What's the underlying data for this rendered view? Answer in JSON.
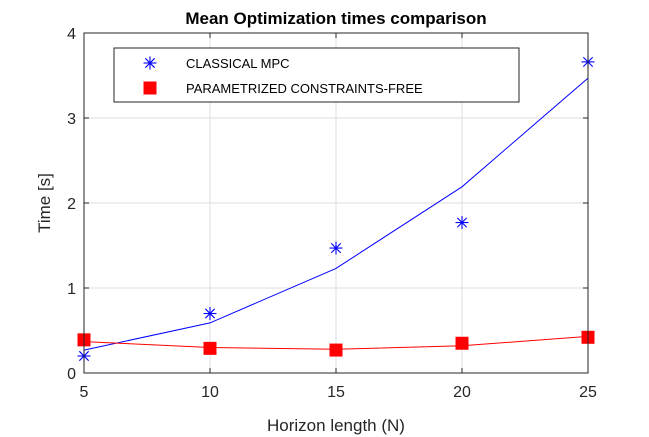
{
  "chart_data": {
    "type": "line",
    "title": "Mean Optimization times comparison",
    "xlabel": "Horizon length (N)",
    "ylabel": "Time [s]",
    "xlim": [
      5,
      25
    ],
    "ylim": [
      0,
      4
    ],
    "xticks": [
      5,
      10,
      15,
      20,
      25
    ],
    "yticks": [
      0,
      1,
      2,
      3,
      4
    ],
    "grid": true,
    "legend": "top-left",
    "x": [
      5,
      10,
      15,
      20,
      25
    ],
    "series": [
      {
        "name": "CLASSICAL MPC",
        "marker": "asterisk",
        "color": "#0000ff",
        "values": [
          0.2,
          0.7,
          1.47,
          1.77,
          3.66
        ],
        "fit": [
          0.27,
          0.59,
          1.23,
          2.19,
          3.47
        ]
      },
      {
        "name": "PARAMETRIZED CONSTRAINTS-FREE",
        "marker": "square",
        "color": "#ff0000",
        "values": [
          0.39,
          0.29,
          0.27,
          0.35,
          0.42
        ],
        "fit": [
          0.37,
          0.3,
          0.28,
          0.32,
          0.43
        ]
      }
    ]
  }
}
